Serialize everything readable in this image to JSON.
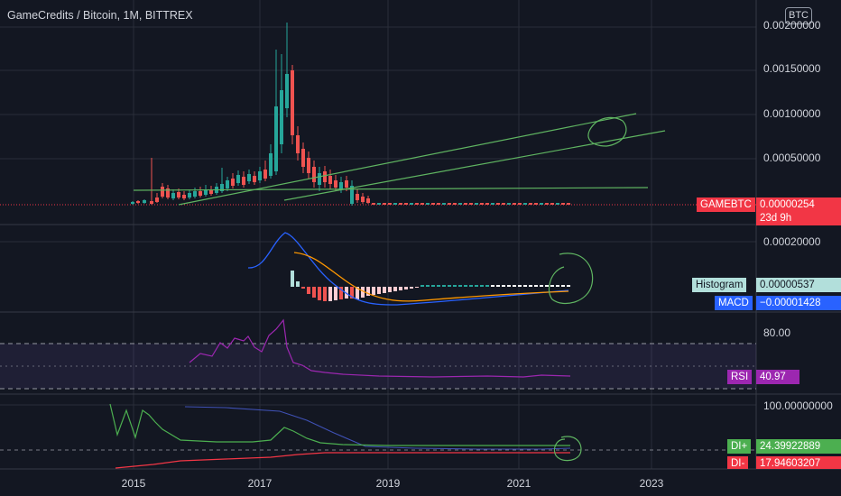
{
  "header": {
    "title": "GameCredits / Bitcoin, 1M, BITTREX",
    "currency": "BTC"
  },
  "price_axis": {
    "labels": [
      "0.00200000",
      "0.00150000",
      "0.00100000",
      "0.00050000"
    ]
  },
  "macd_axis": {
    "labels": [
      "0.00020000"
    ]
  },
  "rsi_axis": {
    "labels": [
      "80.00"
    ]
  },
  "dmi_axis": {
    "labels": [
      "100.00000000"
    ]
  },
  "time_axis": {
    "labels": [
      "2015",
      "2017",
      "2019",
      "2021",
      "2023"
    ]
  },
  "price_tag": {
    "symbol": "GAMEBTC",
    "value": "0.00000254",
    "countdown": "23d 9h",
    "color": "#f23645"
  },
  "macd_tags": {
    "histogram_label": "Histogram",
    "histogram_value": "0.00000537",
    "macd_label": "MACD",
    "macd_value": "−0.00001428",
    "macd_color": "#2962ff"
  },
  "rsi_tag": {
    "label": "RSI",
    "value": "40.97",
    "color": "#9c27b0"
  },
  "dmi_tags": {
    "di_plus_label": "DI+",
    "di_plus_value": "24.39922889",
    "di_plus_color": "#4caf50",
    "di_minus_label": "DI-",
    "di_minus_value": "17.94603207",
    "di_minus_color": "#f23645"
  },
  "colors": {
    "up": "#26a69a",
    "down": "#ef5350",
    "background": "#131722",
    "trendline": "#5fb461",
    "signal": "#ff9800"
  }
}
